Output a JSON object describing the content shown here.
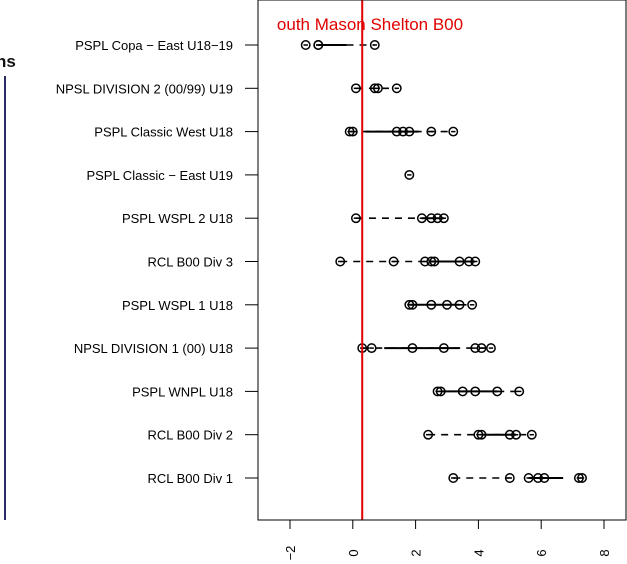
{
  "side_heading": "ns",
  "chart_data": {
    "type": "scatter",
    "title": "outh Mason Shelton B00",
    "xlim": [
      -2.8,
      8.7
    ],
    "x_ticks": [
      -2,
      0,
      2,
      4,
      6,
      8
    ],
    "x_tick_labels": [
      "−2",
      "0",
      "2",
      "4",
      "6",
      "8"
    ],
    "reference_line": {
      "x": 0.3,
      "color": "#e00000"
    },
    "categories": [
      "PSPL Copa − East U18−19",
      "NPSL DIVISION 2 (00/99) U19",
      "PSPL Classic West U18",
      "PSPL Classic − East U19",
      "PSPL WSPL 2 U18",
      "RCL B00 Div 3",
      "PSPL WSPL 1 U18",
      "NPSL DIVISION 1 (00) U18",
      "PSPL WNPL U18",
      "RCL B00 Div 2",
      "RCL B00 Div 1"
    ],
    "rows": [
      {
        "points": [
          -1.5,
          -1.1,
          -1.1,
          0.7
        ],
        "solid": [
          -1.1,
          -0.2
        ],
        "dashed": [
          -0.2,
          0.7
        ]
      },
      {
        "points": [
          0.1,
          0.7,
          0.8,
          1.4
        ],
        "solid": null,
        "dashed": [
          0.1,
          1.4
        ]
      },
      {
        "points": [
          -0.1,
          0.0,
          1.4,
          1.6,
          1.8,
          2.5,
          3.2
        ],
        "solid": [
          0.4,
          2.1
        ],
        "dashed": [
          -0.1,
          3.2
        ]
      },
      {
        "points": [
          1.8
        ],
        "solid": null,
        "dashed": null
      },
      {
        "points": [
          0.1,
          2.2,
          2.5,
          2.7,
          2.9
        ],
        "solid": [
          2.2,
          2.9
        ],
        "dashed": [
          0.1,
          2.2
        ]
      },
      {
        "points": [
          -0.4,
          1.3,
          2.3,
          2.5,
          2.6,
          3.4,
          3.7,
          3.9
        ],
        "solid": [
          2.5,
          3.9
        ],
        "dashed": [
          -0.4,
          2.5
        ]
      },
      {
        "points": [
          1.8,
          1.9,
          2.5,
          3.0,
          3.4,
          3.8
        ],
        "solid": [
          1.8,
          3.4
        ],
        "dashed": [
          3.4,
          3.8
        ]
      },
      {
        "points": [
          0.3,
          0.6,
          1.9,
          2.9,
          3.9,
          4.1,
          4.4
        ],
        "solid": [
          1.0,
          3.4
        ],
        "dashed": [
          0.3,
          4.4
        ]
      },
      {
        "points": [
          2.7,
          2.8,
          3.5,
          3.9,
          4.6,
          5.3
        ],
        "solid": [
          2.8,
          4.6
        ],
        "dashed": [
          4.6,
          5.3
        ]
      },
      {
        "points": [
          2.4,
          4.0,
          4.1,
          5.0,
          5.2,
          5.7
        ],
        "solid": [
          4.1,
          5.2
        ],
        "dashed": [
          2.4,
          5.7
        ]
      },
      {
        "points": [
          3.2,
          5.0,
          5.6,
          5.9,
          6.1,
          7.2,
          7.3
        ],
        "solid": [
          5.6,
          6.7
        ],
        "dashed": [
          3.2,
          5.0
        ]
      }
    ]
  }
}
